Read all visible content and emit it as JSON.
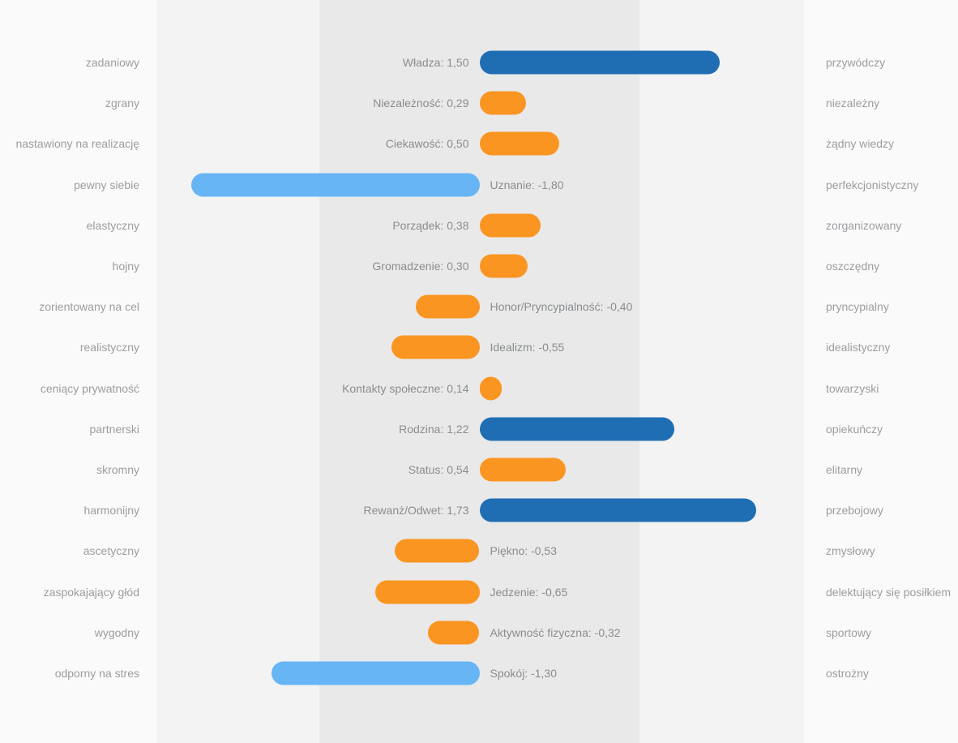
{
  "palette": {
    "positive_strong_bar": "#1f6eb3",
    "negative_strong_bar": "#68b5f6",
    "moderate_bar": "#fa9522",
    "band_outer": "#fafafa",
    "band_inner": "#f3f3f3",
    "band_center": "#e9e9e9",
    "trait_text": "#9b9da0",
    "value_text": "#8a8d90"
  },
  "chart_data": {
    "type": "bar",
    "orientation": "horizontal-diverging",
    "title": "",
    "xlabel": "",
    "ylabel": "",
    "value_range": [
      -2,
      2
    ],
    "center_band_value_range": [
      -1,
      1
    ],
    "grid": false,
    "legend": false,
    "decimal_separator": ",",
    "rows": [
      {
        "left_trait": "zadaniowy",
        "right_trait": "przywódczy",
        "scale": "Władza",
        "value": 1.5,
        "label_display": "Władza: 1,50",
        "color": "#1f6eb3"
      },
      {
        "left_trait": "zgrany",
        "right_trait": "niezależny",
        "scale": "Niezależność",
        "value": 0.29,
        "label_display": "Niezależność: 0,29",
        "color": "#fa9522"
      },
      {
        "left_trait": "nastawiony na realizację",
        "right_trait": "żądny wiedzy",
        "scale": "Ciekawość",
        "value": 0.5,
        "label_display": "Ciekawość: 0,50",
        "color": "#fa9522"
      },
      {
        "left_trait": "pewny siebie",
        "right_trait": "perfekcjonistyczny",
        "scale": "Uznanie",
        "value": -1.8,
        "label_display": "Uznanie: -1,80",
        "color": "#68b5f6"
      },
      {
        "left_trait": "elastyczny",
        "right_trait": "zorganizowany",
        "scale": "Porządek",
        "value": 0.38,
        "label_display": "Porządek: 0,38",
        "color": "#fa9522"
      },
      {
        "left_trait": "hojny",
        "right_trait": "oszczędny",
        "scale": "Gromadzenie",
        "value": 0.3,
        "label_display": "Gromadzenie: 0,30",
        "color": "#fa9522"
      },
      {
        "left_trait": "zorientowany na cel",
        "right_trait": "pryncypialny",
        "scale": "Honor/Pryncypialność",
        "value": -0.4,
        "label_display": "Honor/Pryncypialność: -0,40",
        "color": "#fa9522"
      },
      {
        "left_trait": "realistyczny",
        "right_trait": "idealistyczny",
        "scale": "Idealizm",
        "value": -0.55,
        "label_display": "Idealizm: -0,55",
        "color": "#fa9522"
      },
      {
        "left_trait": "ceniący prywatność",
        "right_trait": "towarzyski",
        "scale": "Kontakty społeczne",
        "value": 0.14,
        "label_display": "Kontakty społeczne: 0,14",
        "color": "#fa9522"
      },
      {
        "left_trait": "partnerski",
        "right_trait": "opiekuńczy",
        "scale": "Rodzina",
        "value": 1.22,
        "label_display": "Rodzina: 1,22",
        "color": "#1f6eb3"
      },
      {
        "left_trait": "skromny",
        "right_trait": "elitarny",
        "scale": "Status",
        "value": 0.54,
        "label_display": "Status: 0,54",
        "color": "#fa9522"
      },
      {
        "left_trait": "harmonijny",
        "right_trait": "przebojowy",
        "scale": "Rewanż/Odwet",
        "value": 1.73,
        "label_display": "Rewanż/Odwet: 1,73",
        "color": "#1f6eb3"
      },
      {
        "left_trait": "ascetyczny",
        "right_trait": "zmysłowy",
        "scale": "Piękno",
        "value": -0.53,
        "label_display": "Piękno: -0,53",
        "color": "#fa9522"
      },
      {
        "left_trait": "zaspokajający głód",
        "right_trait": "delektujący się posiłkiem",
        "scale": "Jedzenie",
        "value": -0.65,
        "label_display": "Jedzenie: -0,65",
        "color": "#fa9522"
      },
      {
        "left_trait": "wygodny",
        "right_trait": "sportowy",
        "scale": "Aktywność fizyczna",
        "value": -0.32,
        "label_display": "Aktywność fizyczna: -0,32",
        "color": "#fa9522"
      },
      {
        "left_trait": "odporny na stres",
        "right_trait": "ostrożny",
        "scale": "Spokój",
        "value": -1.3,
        "label_display": "Spokój: -1,30",
        "color": "#68b5f6"
      }
    ]
  }
}
